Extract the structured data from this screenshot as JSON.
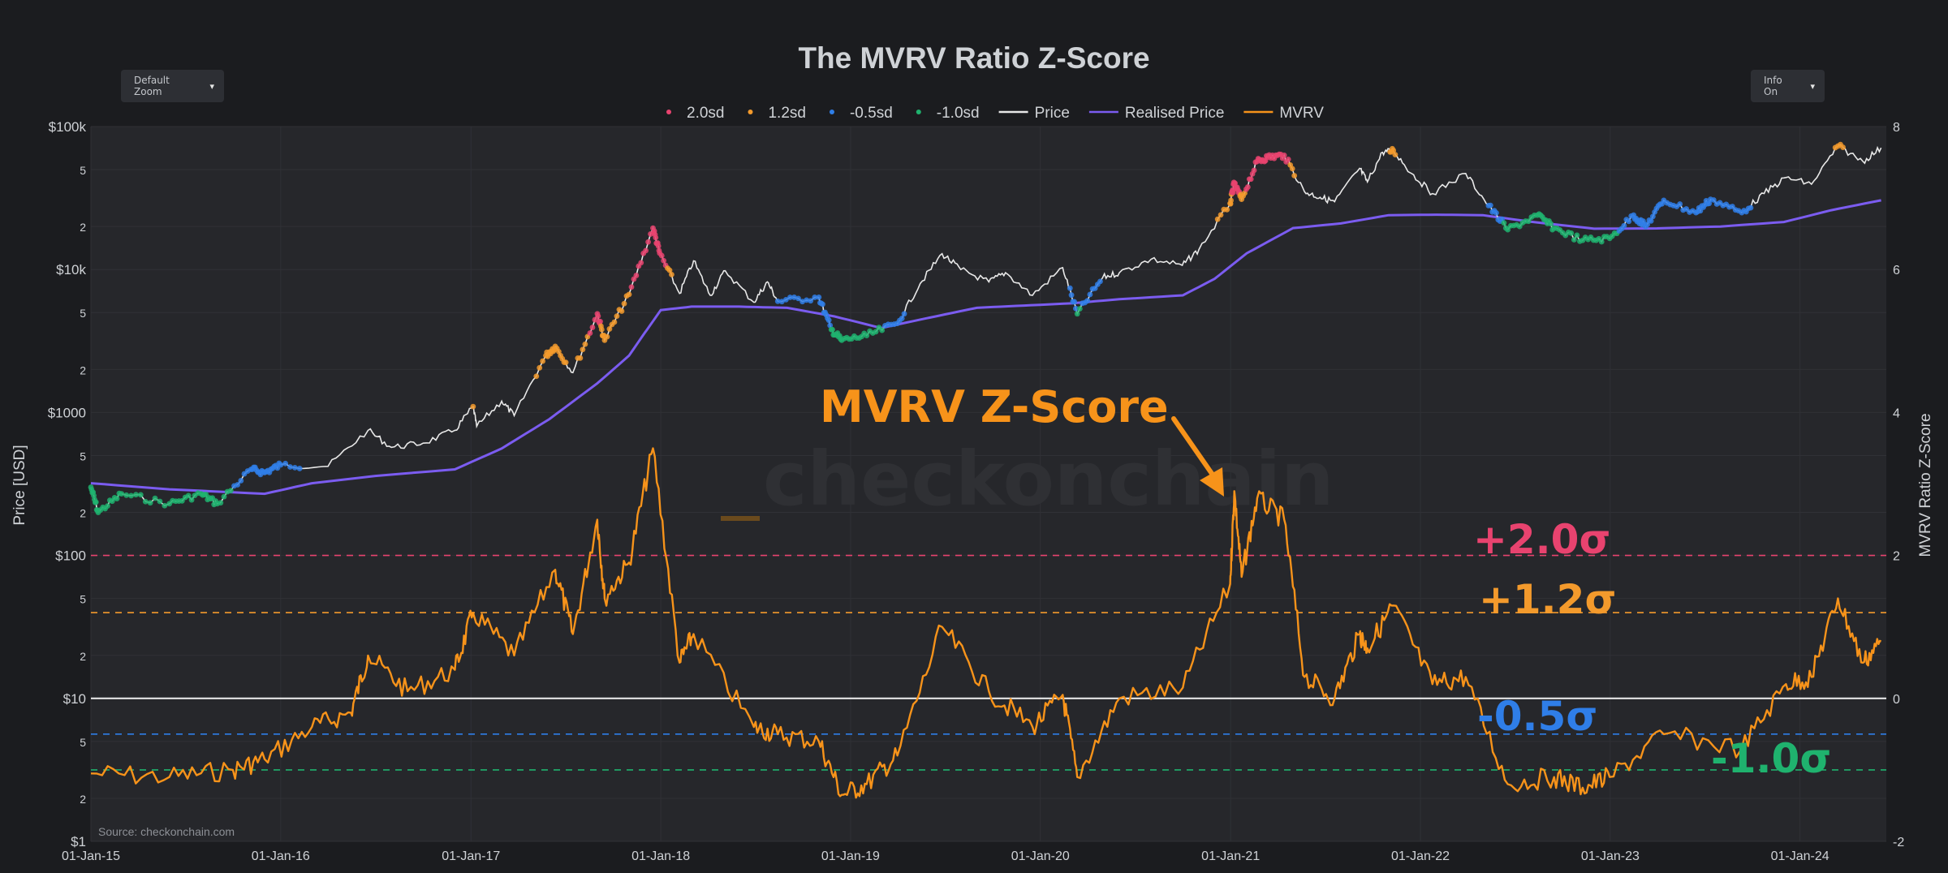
{
  "controls": {
    "zoom_label": "Default Zoom",
    "info_label": "Info On",
    "arrow": "▾"
  },
  "colors": {
    "background": "#1b1c1f",
    "plot_background": "#26272b",
    "price": "#e8e8e8",
    "realised_price": "#7b5cf0",
    "mvrv": "#f7931a",
    "sd_2_0": "#e8436f",
    "sd_1_2": "#f39a2c",
    "sd_neg_0_5": "#2f7ee8",
    "sd_neg_1_0": "#1fb26e"
  },
  "chart_data": {
    "type": "line",
    "title": "The MVRV Ratio Z-Score",
    "source": "Source: checkonchain.com",
    "watermark": "checkonchain",
    "annotation": "MVRV Z-Score",
    "grid": true,
    "legend_position": "top-center",
    "legend": [
      {
        "name": "2.0sd",
        "kind": "dot",
        "color": "#e8436f"
      },
      {
        "name": "1.2sd",
        "kind": "dot",
        "color": "#f39a2c"
      },
      {
        "name": "-0.5sd",
        "kind": "dot",
        "color": "#2f7ee8"
      },
      {
        "name": "-1.0sd",
        "kind": "dot",
        "color": "#1fb26e"
      },
      {
        "name": "Price",
        "kind": "line",
        "color": "#e8e8e8"
      },
      {
        "name": "Realised Price",
        "kind": "line",
        "color": "#7b5cf0"
      },
      {
        "name": "MVRV",
        "kind": "line",
        "color": "#f7931a"
      }
    ],
    "x_axis": {
      "range": [
        "2015-01-01",
        "2024-06-15"
      ],
      "ticks": [
        "01-Jan-15",
        "01-Jan-16",
        "01-Jan-17",
        "01-Jan-18",
        "01-Jan-19",
        "01-Jan-20",
        "01-Jan-21",
        "01-Jan-22",
        "01-Jan-23",
        "01-Jan-24"
      ]
    },
    "y_left": {
      "label": "Price [USD]",
      "scale": "log",
      "range": [
        1,
        100000
      ],
      "ticks": [
        {
          "v": 1,
          "t": "$1"
        },
        {
          "v": 2,
          "t": "2"
        },
        {
          "v": 5,
          "t": "5"
        },
        {
          "v": 10,
          "t": "$10"
        },
        {
          "v": 20,
          "t": "2"
        },
        {
          "v": 50,
          "t": "5"
        },
        {
          "v": 100,
          "t": "$100"
        },
        {
          "v": 200,
          "t": "2"
        },
        {
          "v": 500,
          "t": "5"
        },
        {
          "v": 1000,
          "t": "$1000"
        },
        {
          "v": 2000,
          "t": "2"
        },
        {
          "v": 5000,
          "t": "5"
        },
        {
          "v": 10000,
          "t": "$10k"
        },
        {
          "v": 20000,
          "t": "2"
        },
        {
          "v": 50000,
          "t": "5"
        },
        {
          "v": 100000,
          "t": "$100k"
        }
      ]
    },
    "y_right": {
      "label": "MVRV Ratio Z-Score",
      "range": [
        -2,
        8
      ],
      "ticks": [
        -2,
        0,
        2,
        4,
        6,
        8
      ]
    },
    "bands": [
      {
        "label": "+2.0σ",
        "value": 2.0,
        "color": "#e8436f"
      },
      {
        "label": "+1.2σ",
        "value": 1.2,
        "color": "#f39a2c"
      },
      {
        "label": "-0.5σ",
        "value": -0.5,
        "color": "#2f7ee8"
      },
      {
        "label": "-1.0σ",
        "value": -1.0,
        "color": "#1fb26e"
      }
    ],
    "series": [
      {
        "name": "Price",
        "axis": "left",
        "points": [
          [
            "2015-01-01",
            300
          ],
          [
            "2015-01-15",
            200
          ],
          [
            "2015-03-01",
            270
          ],
          [
            "2015-06-01",
            230
          ],
          [
            "2015-08-01",
            270
          ],
          [
            "2015-09-01",
            230
          ],
          [
            "2015-11-05",
            400
          ],
          [
            "2015-12-01",
            380
          ],
          [
            "2016-01-01",
            430
          ],
          [
            "2016-04-01",
            420
          ],
          [
            "2016-06-17",
            750
          ],
          [
            "2016-08-01",
            570
          ],
          [
            "2016-10-01",
            610
          ],
          [
            "2016-12-01",
            750
          ],
          [
            "2017-01-05",
            1100
          ],
          [
            "2017-01-12",
            800
          ],
          [
            "2017-03-01",
            1200
          ],
          [
            "2017-03-25",
            950
          ],
          [
            "2017-05-25",
            2500
          ],
          [
            "2017-06-12",
            2900
          ],
          [
            "2017-07-16",
            1900
          ],
          [
            "2017-09-01",
            4900
          ],
          [
            "2017-09-15",
            3200
          ],
          [
            "2017-11-01",
            6700
          ],
          [
            "2017-12-17",
            19500
          ],
          [
            "2017-12-30",
            13000
          ],
          [
            "2018-02-06",
            6800
          ],
          [
            "2018-03-05",
            11500
          ],
          [
            "2018-04-06",
            6600
          ],
          [
            "2018-05-05",
            9800
          ],
          [
            "2018-06-29",
            5900
          ],
          [
            "2018-07-25",
            8200
          ],
          [
            "2018-08-14",
            6000
          ],
          [
            "2018-11-01",
            6400
          ],
          [
            "2018-11-25",
            3800
          ],
          [
            "2018-12-15",
            3200
          ],
          [
            "2019-02-01",
            3450
          ],
          [
            "2019-04-01",
            4200
          ],
          [
            "2019-05-15",
            8000
          ],
          [
            "2019-06-26",
            12900
          ],
          [
            "2019-08-01",
            10000
          ],
          [
            "2019-09-24",
            8200
          ],
          [
            "2019-10-26",
            9500
          ],
          [
            "2019-12-17",
            6600
          ],
          [
            "2020-02-13",
            10300
          ],
          [
            "2020-03-12",
            4900
          ],
          [
            "2020-04-30",
            8800
          ],
          [
            "2020-06-01",
            9500
          ],
          [
            "2020-08-01",
            11800
          ],
          [
            "2020-09-30",
            10700
          ],
          [
            "2020-11-01",
            13800
          ],
          [
            "2020-12-31",
            29000
          ],
          [
            "2021-01-08",
            40000
          ],
          [
            "2021-01-22",
            31000
          ],
          [
            "2021-02-21",
            57000
          ],
          [
            "2021-03-13",
            61000
          ],
          [
            "2021-04-14",
            63000
          ],
          [
            "2021-05-23",
            35000
          ],
          [
            "2021-06-22",
            32000
          ],
          [
            "2021-07-20",
            29800
          ],
          [
            "2021-09-06",
            51000
          ],
          [
            "2021-09-21",
            41000
          ],
          [
            "2021-10-20",
            66000
          ],
          [
            "2021-11-10",
            68000
          ],
          [
            "2021-12-15",
            47000
          ],
          [
            "2022-01-24",
            34000
          ],
          [
            "2022-03-29",
            47000
          ],
          [
            "2022-05-12",
            28000
          ],
          [
            "2022-06-18",
            19000
          ],
          [
            "2022-08-14",
            24000
          ],
          [
            "2022-09-15",
            19500
          ],
          [
            "2022-11-09",
            16000
          ],
          [
            "2022-12-31",
            16500
          ],
          [
            "2023-02-15",
            24000
          ],
          [
            "2023-03-10",
            20000
          ],
          [
            "2023-04-14",
            30500
          ],
          [
            "2023-06-15",
            25000
          ],
          [
            "2023-07-13",
            31000
          ],
          [
            "2023-09-11",
            25000
          ],
          [
            "2023-10-24",
            34000
          ],
          [
            "2023-12-05",
            44000
          ],
          [
            "2024-01-23",
            39500
          ],
          [
            "2024-03-14",
            73000
          ],
          [
            "2024-05-01",
            57000
          ],
          [
            "2024-06-05",
            71000
          ]
        ]
      },
      {
        "name": "Realised Price",
        "axis": "left",
        "points": [
          [
            "2015-01-01",
            320
          ],
          [
            "2015-06-01",
            290
          ],
          [
            "2015-12-01",
            270
          ],
          [
            "2016-03-01",
            320
          ],
          [
            "2016-07-01",
            360
          ],
          [
            "2016-12-01",
            400
          ],
          [
            "2017-03-01",
            560
          ],
          [
            "2017-06-01",
            900
          ],
          [
            "2017-09-01",
            1600
          ],
          [
            "2017-11-01",
            2500
          ],
          [
            "2017-12-01",
            3600
          ],
          [
            "2018-01-01",
            5200
          ],
          [
            "2018-03-01",
            5500
          ],
          [
            "2018-06-01",
            5500
          ],
          [
            "2018-09-01",
            5400
          ],
          [
            "2018-12-01",
            4700
          ],
          [
            "2019-03-01",
            3900
          ],
          [
            "2019-06-01",
            4600
          ],
          [
            "2019-09-01",
            5400
          ],
          [
            "2019-12-01",
            5600
          ],
          [
            "2020-03-01",
            5800
          ],
          [
            "2020-06-01",
            6200
          ],
          [
            "2020-10-01",
            6600
          ],
          [
            "2020-12-01",
            8600
          ],
          [
            "2021-02-01",
            13000
          ],
          [
            "2021-05-01",
            19500
          ],
          [
            "2021-08-01",
            21000
          ],
          [
            "2021-11-01",
            24000
          ],
          [
            "2022-02-01",
            24200
          ],
          [
            "2022-05-01",
            24000
          ],
          [
            "2022-08-01",
            21600
          ],
          [
            "2022-12-01",
            19300
          ],
          [
            "2023-04-01",
            19400
          ],
          [
            "2023-08-01",
            20000
          ],
          [
            "2023-12-01",
            21500
          ],
          [
            "2024-03-01",
            26000
          ],
          [
            "2024-06-05",
            30500
          ]
        ]
      },
      {
        "name": "MVRV",
        "axis": "right",
        "points": [
          [
            "2015-01-01",
            -1.05
          ],
          [
            "2015-06-01",
            -1.1
          ],
          [
            "2015-10-01",
            -1.0
          ],
          [
            "2015-12-01",
            -0.85
          ],
          [
            "2016-03-01",
            -0.4
          ],
          [
            "2016-05-15",
            -0.2
          ],
          [
            "2016-06-17",
            0.6
          ],
          [
            "2016-09-01",
            0.1
          ],
          [
            "2016-12-01",
            0.4
          ],
          [
            "2017-01-05",
            1.2
          ],
          [
            "2017-03-25",
            0.6
          ],
          [
            "2017-06-12",
            1.8
          ],
          [
            "2017-07-16",
            0.9
          ],
          [
            "2017-09-01",
            2.5
          ],
          [
            "2017-09-15",
            1.4
          ],
          [
            "2017-11-01",
            1.9
          ],
          [
            "2017-12-17",
            3.5
          ],
          [
            "2018-02-06",
            0.5
          ],
          [
            "2018-03-05",
            0.9
          ],
          [
            "2018-06-29",
            -0.4
          ],
          [
            "2018-08-14",
            -0.5
          ],
          [
            "2018-11-01",
            -0.6
          ],
          [
            "2018-12-15",
            -1.35
          ],
          [
            "2019-02-01",
            -1.2
          ],
          [
            "2019-04-01",
            -0.8
          ],
          [
            "2019-06-26",
            1.0
          ],
          [
            "2019-09-24",
            0.1
          ],
          [
            "2019-12-17",
            -0.4
          ],
          [
            "2020-02-13",
            0.05
          ],
          [
            "2020-03-12",
            -1.1
          ],
          [
            "2020-06-01",
            0.0
          ],
          [
            "2020-10-01",
            0.15
          ],
          [
            "2020-12-31",
            1.6
          ],
          [
            "2021-01-08",
            2.9
          ],
          [
            "2021-01-22",
            1.7
          ],
          [
            "2021-02-21",
            2.8
          ],
          [
            "2021-04-14",
            2.5
          ],
          [
            "2021-05-23",
            0.3
          ],
          [
            "2021-07-20",
            0.0
          ],
          [
            "2021-09-06",
            0.9
          ],
          [
            "2021-09-21",
            0.7
          ],
          [
            "2021-11-10",
            1.3
          ],
          [
            "2022-01-24",
            0.2
          ],
          [
            "2022-03-29",
            0.3
          ],
          [
            "2022-06-18",
            -1.2
          ],
          [
            "2022-09-15",
            -1.1
          ],
          [
            "2022-11-09",
            -1.25
          ],
          [
            "2022-12-31",
            -1.1
          ],
          [
            "2023-04-14",
            -0.5
          ],
          [
            "2023-09-11",
            -0.7
          ],
          [
            "2023-12-05",
            0.2
          ],
          [
            "2024-01-23",
            0.3
          ],
          [
            "2024-03-14",
            1.4
          ],
          [
            "2024-05-01",
            0.5
          ],
          [
            "2024-06-05",
            0.8
          ]
        ]
      }
    ]
  }
}
